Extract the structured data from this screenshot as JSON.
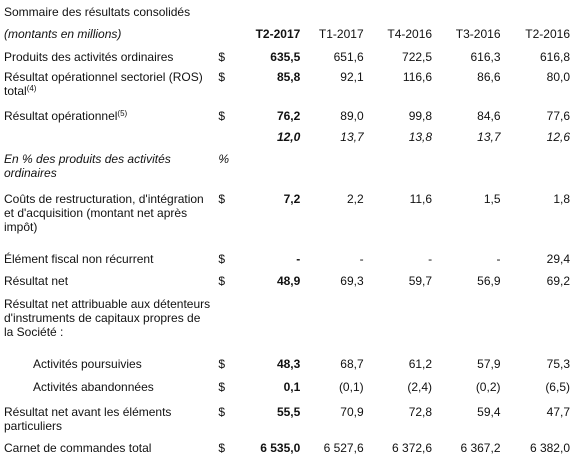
{
  "title": "Sommaire des résultats consolidés",
  "header": {
    "label": "(montants en millions)",
    "columns": [
      "T2-2017",
      "T1-2017",
      "T4-2016",
      "T3-2016",
      "T2-2016"
    ]
  },
  "rows": [
    {
      "label": "Produits des activités ordinaires",
      "cur": "$",
      "values": [
        "635,5",
        "651,6",
        "722,5",
        "616,3",
        "616,8"
      ]
    },
    {
      "label": "Résultat opérationnel sectoriel (ROS) total",
      "sup": "(4)",
      "cur": "$",
      "values": [
        "85,8",
        "92,1",
        "116,6",
        "86,6",
        "80,0"
      ]
    },
    {
      "label": "Résultat opérationnel",
      "sup": "(5)",
      "cur": "$",
      "values": [
        "76,2",
        "89,0",
        "99,8",
        "84,6",
        "77,6"
      ]
    },
    {
      "values": [
        "12,0",
        "13,7",
        "13,8",
        "13,7",
        "12,6"
      ]
    },
    {
      "label": "En % des produits des activités ordinaires",
      "cur": "%"
    },
    {
      "label": "Coûts de restructuration, d'intégration et d'acquisition (montant net après impôt)",
      "cur": "$",
      "values": [
        "7,2",
        "2,2",
        "11,6",
        "1,5",
        "1,8"
      ]
    },
    {
      "label": "Élément fiscal non récurrent",
      "cur": "$",
      "values": [
        "-",
        "-",
        "-",
        "-",
        "29,4"
      ]
    },
    {
      "label": "Résultat net",
      "cur": "$",
      "values": [
        "48,9",
        "69,3",
        "59,7",
        "56,9",
        "69,2"
      ]
    },
    {
      "label": "Résultat net attribuable aux détenteurs d'instruments de capitaux propres de la Société :"
    },
    {
      "label": "Activités poursuivies",
      "cur": "$",
      "values": [
        "48,3",
        "68,7",
        "61,2",
        "57,9",
        "75,3"
      ]
    },
    {
      "label": "Activités abandonnées",
      "cur": "$",
      "values": [
        "0,1",
        "(0,1)",
        "(2,4)",
        "(0,2)",
        "(6,5)"
      ]
    },
    {
      "label": "Résultat net avant les éléments particuliers",
      "cur": "$",
      "values": [
        "55,5",
        "70,9",
        "72,8",
        "59,4",
        "47,7"
      ]
    },
    {
      "label": "Carnet de commandes total",
      "cur": "$",
      "values": [
        "6 535,0",
        "6 527,6",
        "6 372,6",
        "6 367,2",
        "6 382,0"
      ]
    }
  ]
}
